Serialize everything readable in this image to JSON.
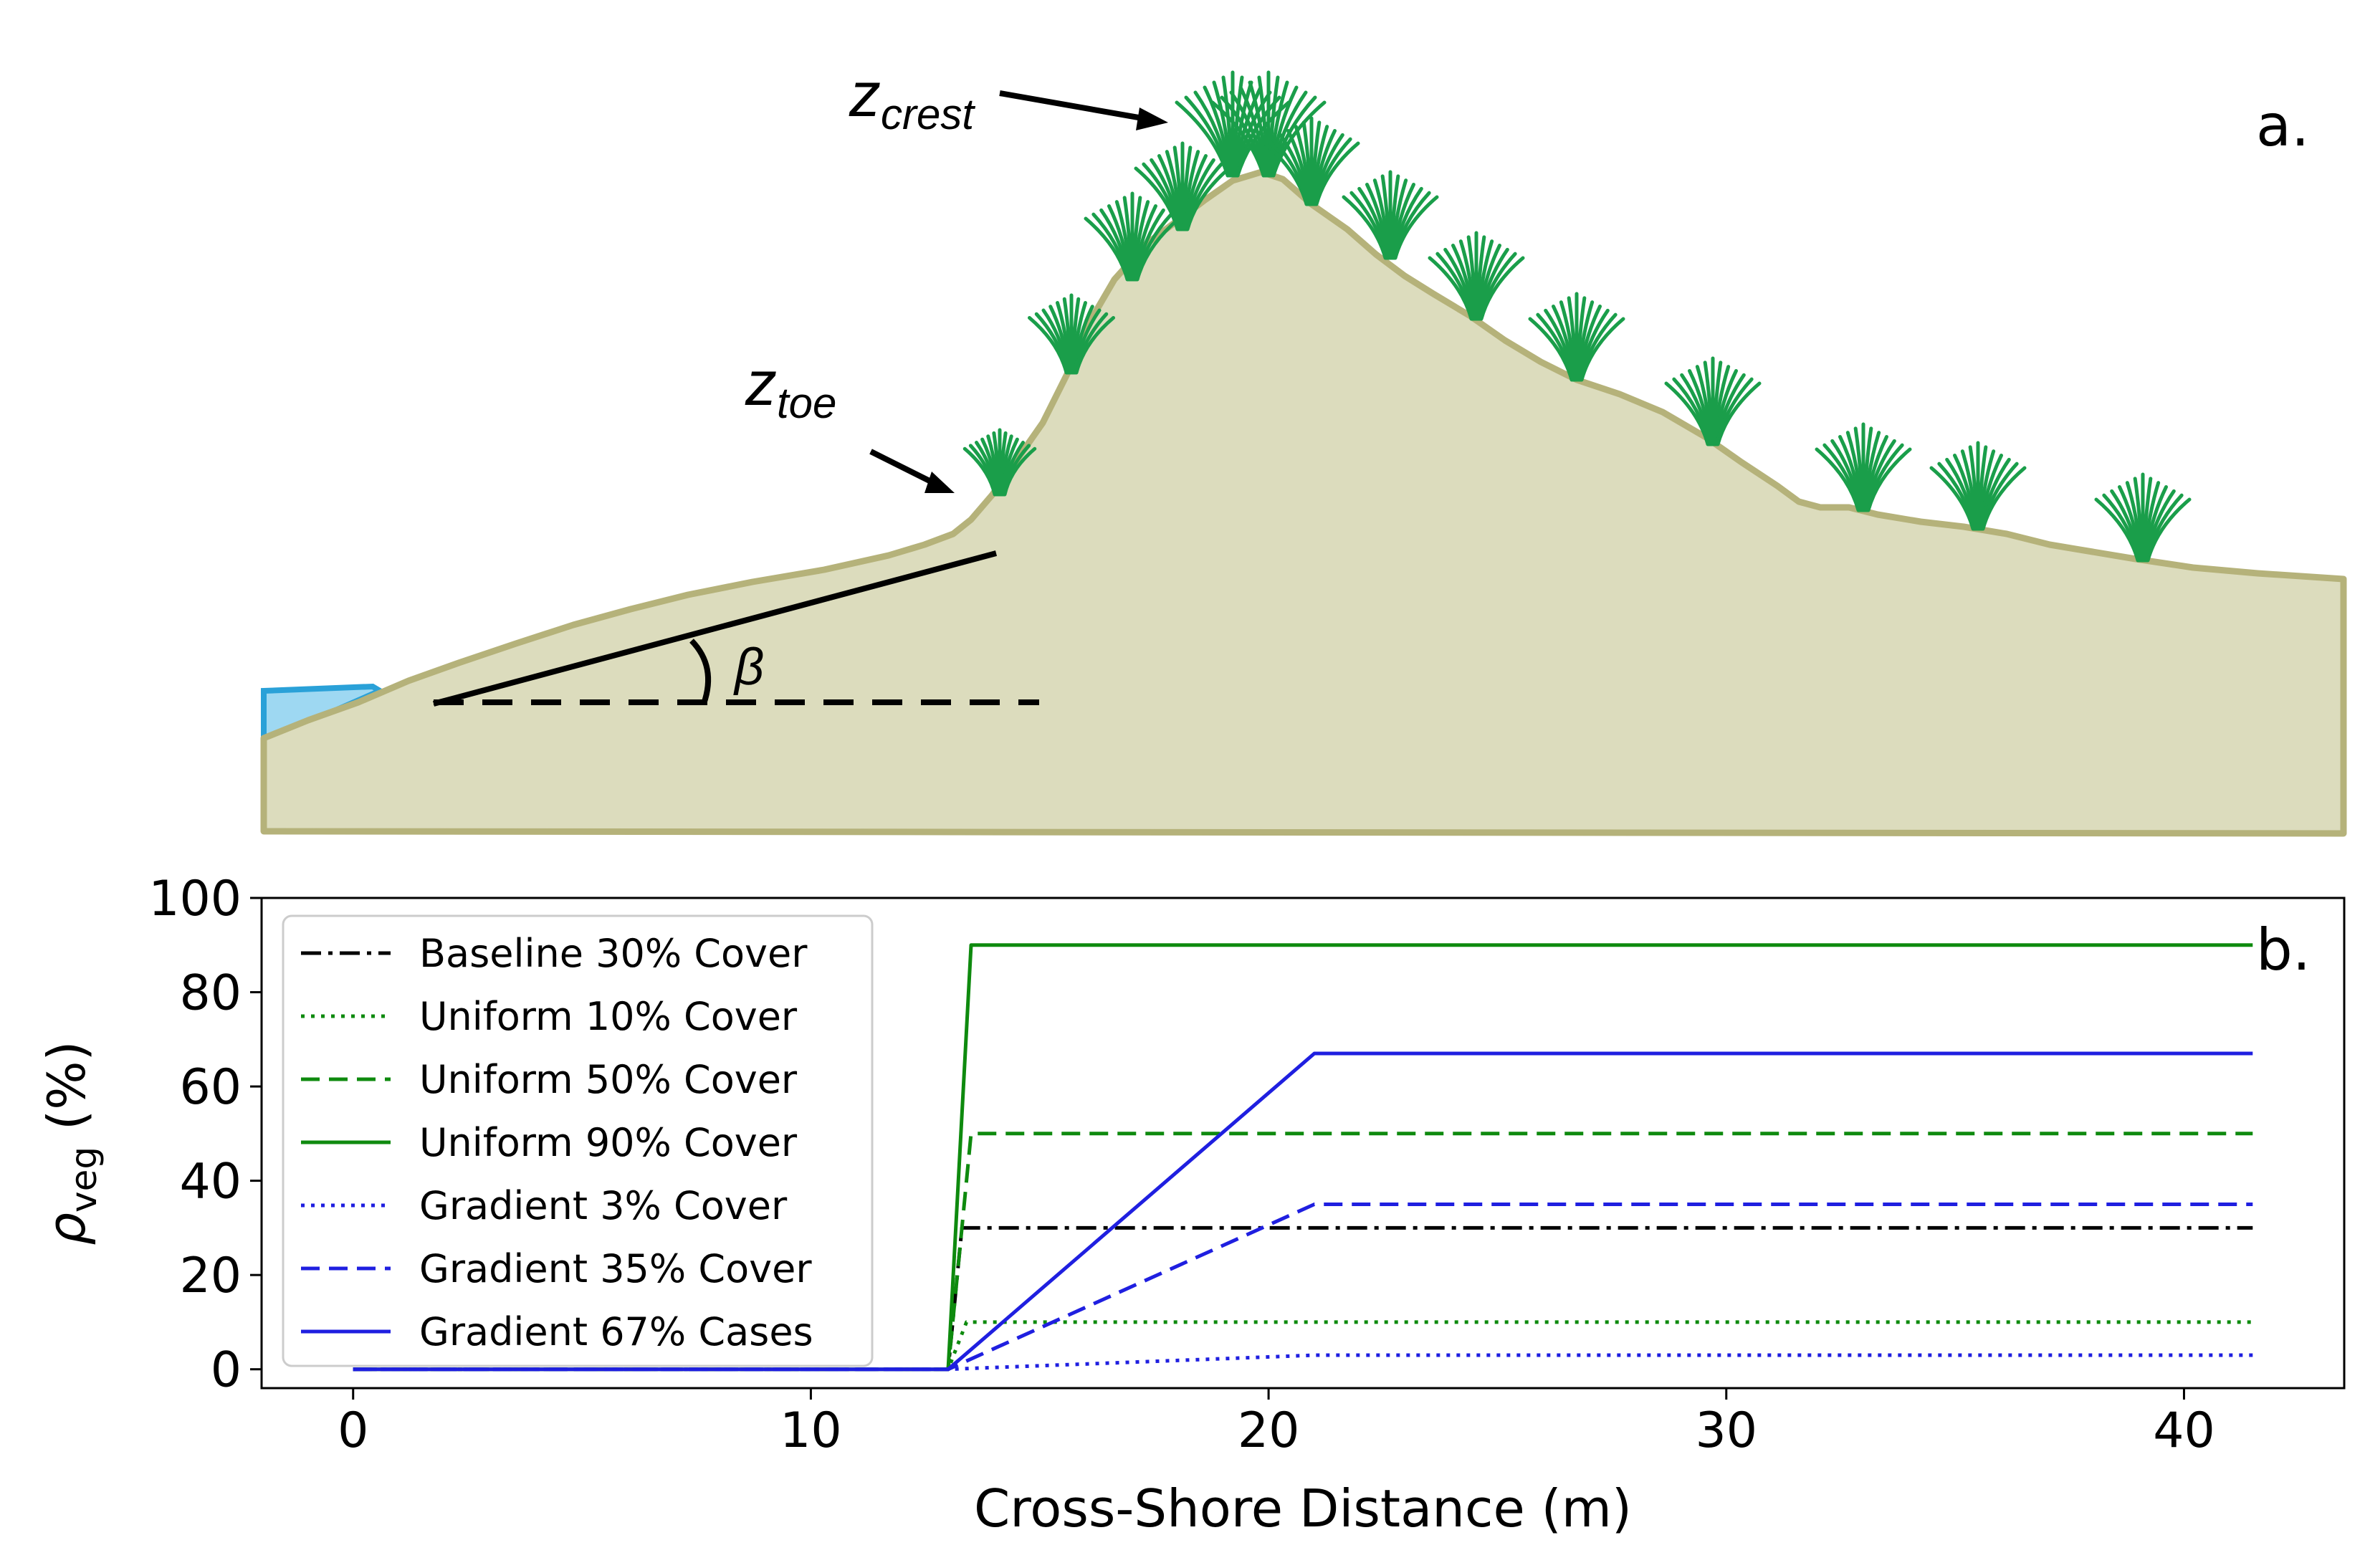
{
  "panel_a": {
    "panel_label": "a.",
    "crest_label": {
      "main": "z",
      "sub": "crest"
    },
    "toe_label": {
      "main": "z",
      "sub": "toe"
    },
    "slope_label": "β",
    "colors": {
      "sand_fill": "#dcdcbd",
      "sand_edge": "#b5b27a",
      "water": "#9ed8f2",
      "water_edge": "#2aa1d8",
      "grass": "#1a9e4a"
    }
  },
  "chart_data": {
    "type": "line",
    "panel_label": "b.",
    "xlabel": "Cross-Shore Distance (m)",
    "ylabel": {
      "main": "ρ",
      "sub": "veg",
      "suffix": " (%)"
    },
    "xlim": [
      -2,
      43.5
    ],
    "ylim": [
      -4,
      100
    ],
    "xticks": [
      0,
      10,
      20,
      30,
      40
    ],
    "yticks": [
      0,
      20,
      40,
      60,
      80,
      100
    ],
    "grid": false,
    "legend_position": "top-left",
    "series": [
      {
        "name": "Baseline 30% Cover",
        "color": "#000000",
        "dash": "dashdot",
        "x": [
          0,
          13,
          13.3,
          41.5
        ],
        "y": [
          0,
          0,
          30,
          30
        ]
      },
      {
        "name": "Uniform 10% Cover",
        "color": "#0e8a0e",
        "dash": "dotted",
        "x": [
          0,
          13,
          13.4,
          41.5
        ],
        "y": [
          0,
          0,
          10,
          10
        ]
      },
      {
        "name": "Uniform 50% Cover",
        "color": "#0e8a0e",
        "dash": "dashed",
        "x": [
          0,
          13,
          13.5,
          41.5
        ],
        "y": [
          0,
          0,
          50,
          50
        ]
      },
      {
        "name": "Uniform 90% Cover",
        "color": "#0e8a0e",
        "dash": "solid",
        "x": [
          0,
          13,
          13.5,
          41.5
        ],
        "y": [
          0,
          0,
          90,
          90
        ]
      },
      {
        "name": "Gradient 3% Cover",
        "color": "#1f1fe0",
        "dash": "dotted",
        "x": [
          0,
          13,
          21,
          41.5
        ],
        "y": [
          0,
          0,
          3,
          3
        ]
      },
      {
        "name": "Gradient 35% Cover",
        "color": "#1f1fe0",
        "dash": "dashed",
        "x": [
          0,
          13,
          21,
          41.5
        ],
        "y": [
          0,
          0,
          35,
          35
        ]
      },
      {
        "name": "Gradient 67% Cases",
        "color": "#1f1fe0",
        "dash": "solid",
        "x": [
          0,
          13,
          21,
          41.5
        ],
        "y": [
          0,
          0,
          67,
          67
        ]
      }
    ]
  }
}
